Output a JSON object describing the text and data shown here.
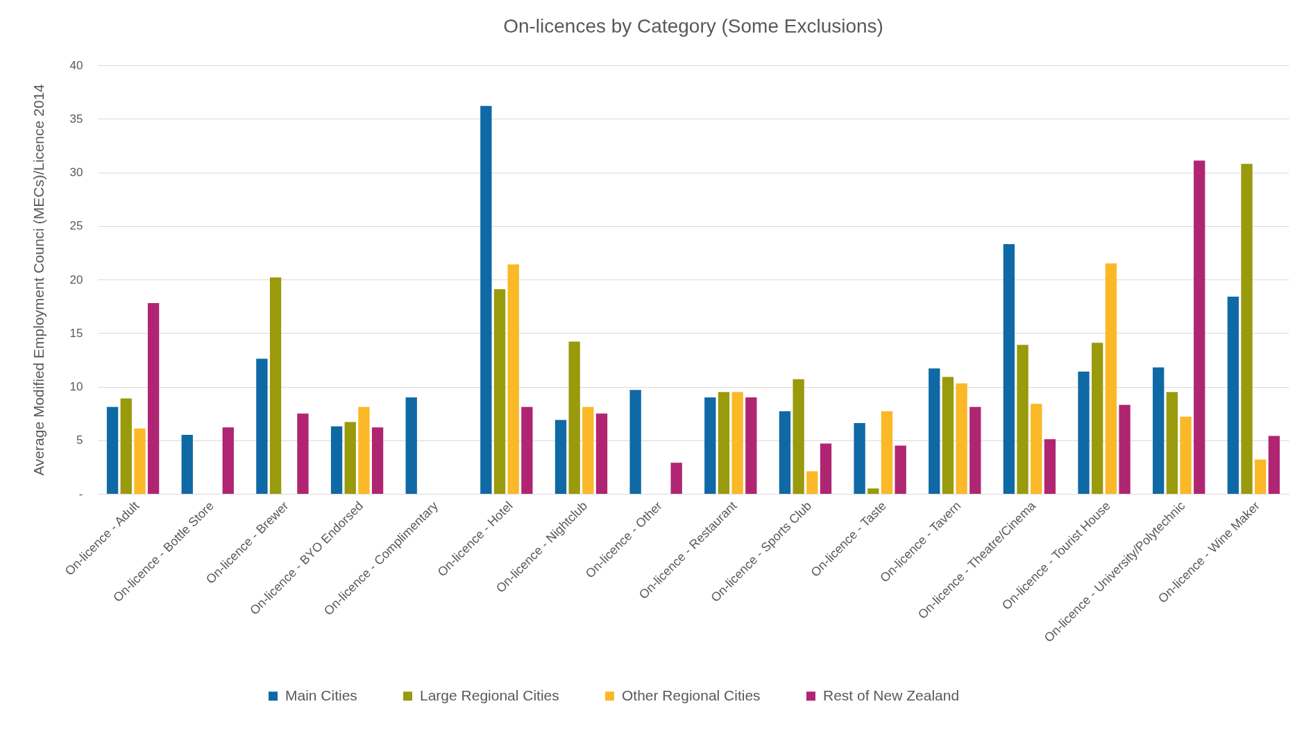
{
  "chart_data": {
    "type": "bar",
    "title": "On-licences by Category (Some Exclusions)",
    "ylabel": "Average Modified Employment Counci (MECs)/Licence 2014",
    "categories": [
      "On-licence - Adult",
      "On-licence - Bottle Store",
      "On-licence - Brewer",
      "On-licence - BYO Endorsed",
      "On-licence - Complimentary",
      "On-licence - Hotel",
      "On-licence - Nightclub",
      "On-licence - Other",
      "On-licence - Restaurant",
      "On-licence - Sports Club",
      "On-licence - Taste",
      "On-licence - Tavern",
      "On-licence - Theatre/Cinema",
      "On-licence - Tourist House",
      "On-licence - University/Polytechnic",
      "On-licence - Wine Maker"
    ],
    "series": [
      {
        "name": "Main Cities",
        "color": "#0e69a5",
        "values": [
          8.1,
          5.5,
          12.6,
          6.3,
          9.0,
          36.2,
          6.9,
          9.7,
          9.0,
          7.7,
          6.6,
          11.7,
          23.3,
          11.4,
          11.8,
          18.4
        ]
      },
      {
        "name": "Large Regional Cities",
        "color": "#999a0c",
        "values": [
          8.9,
          null,
          20.2,
          6.7,
          null,
          19.1,
          14.2,
          null,
          9.5,
          10.7,
          0.5,
          10.9,
          13.9,
          14.1,
          9.5,
          30.8
        ]
      },
      {
        "name": "Other Regional Cities",
        "color": "#fbb827",
        "values": [
          6.1,
          null,
          null,
          8.1,
          null,
          21.4,
          8.1,
          null,
          9.5,
          2.1,
          7.7,
          10.3,
          8.4,
          21.5,
          7.2,
          3.2
        ]
      },
      {
        "name": "Rest of New Zealand",
        "color": "#b02572",
        "values": [
          17.8,
          6.2,
          7.5,
          6.2,
          null,
          8.1,
          7.5,
          2.9,
          9.0,
          4.7,
          4.5,
          8.1,
          5.1,
          8.3,
          31.1,
          5.4
        ]
      }
    ],
    "ylim": [
      0,
      40
    ],
    "yticks": [
      {
        "value": 0,
        "label": "-"
      },
      5,
      10,
      15,
      20,
      25,
      30,
      35,
      40
    ],
    "grid": "y",
    "legend": "bottom"
  }
}
